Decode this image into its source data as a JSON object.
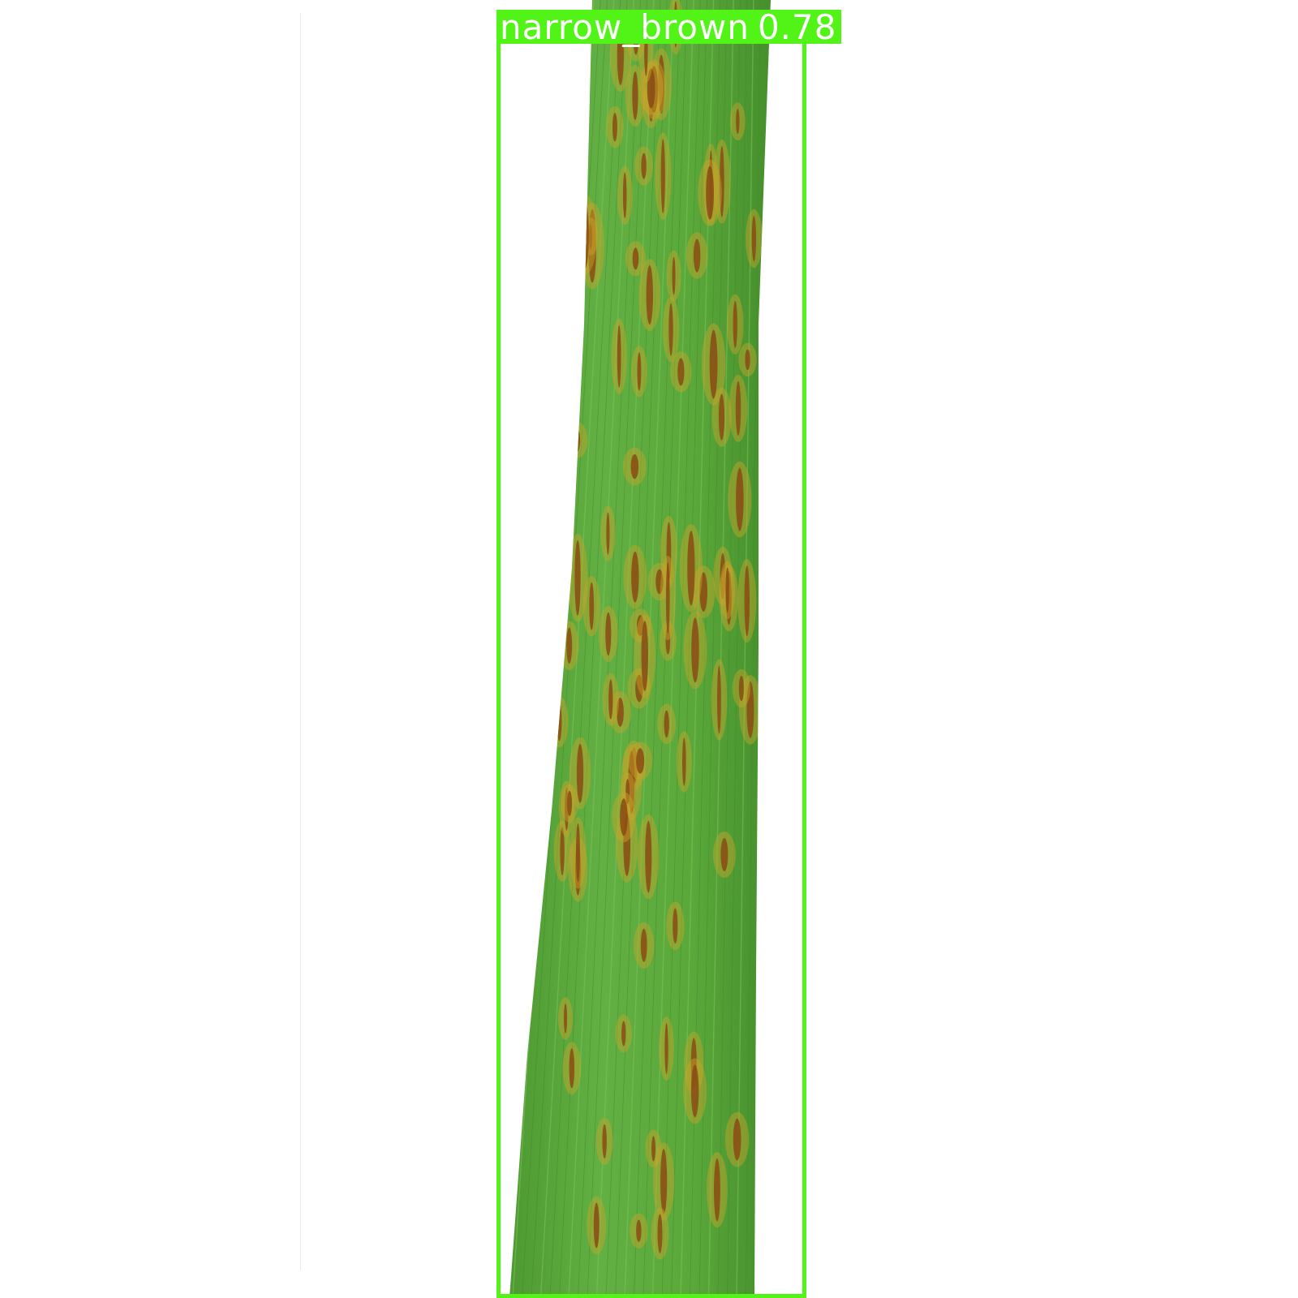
{
  "detections": [
    {
      "label": "narrow_brown",
      "score": "0.78",
      "color": "#52f417"
    }
  ],
  "colors": {
    "background": "#ffffff",
    "leaf_green": "#5aa83a",
    "leaf_dark": "#3f8f2c",
    "lesion_brown": "#8a4a14",
    "lesion_halo": "#c9a52a"
  },
  "icons": {
    "leaf": "leaf-photo"
  }
}
